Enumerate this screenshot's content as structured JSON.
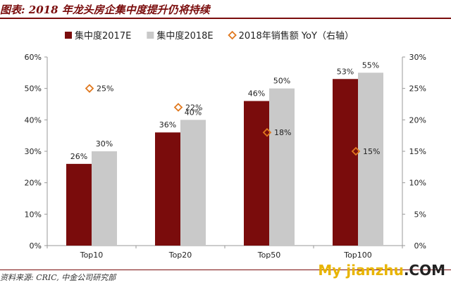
{
  "header": {
    "title": "图表: 2018 年龙头房企集中度提升仍将持续"
  },
  "footer": {
    "source": "资料来源: CRIC, 中金公司研究部",
    "watermark_main": "My jianzhu",
    "watermark_suffix": ".COM",
    "watermark_main_color": "#e8b400",
    "watermark_suffix_color": "#222222"
  },
  "chart_data": {
    "type": "bar",
    "categories": [
      "Top10",
      "Top20",
      "Top50",
      "Top100"
    ],
    "series": [
      {
        "name": "集中度2017E",
        "kind": "bar",
        "axis": "left",
        "color": "#7a0c0c",
        "values": [
          26,
          36,
          46,
          53
        ]
      },
      {
        "name": "集中度2018E",
        "kind": "bar",
        "axis": "left",
        "color": "#c9c9c9",
        "values": [
          30,
          40,
          50,
          55
        ]
      },
      {
        "name": "2018年销售额 YoY（右轴）",
        "kind": "scatter",
        "marker": "diamond",
        "axis": "right",
        "color": "#e0781e",
        "values": [
          25,
          22,
          18,
          15
        ]
      }
    ],
    "y_left": {
      "min": 0,
      "max": 60,
      "step": 10,
      "unit": "%"
    },
    "y_right": {
      "min": 0,
      "max": 30,
      "step": 5,
      "unit": "%"
    },
    "grid": false,
    "legend_position": "top"
  }
}
